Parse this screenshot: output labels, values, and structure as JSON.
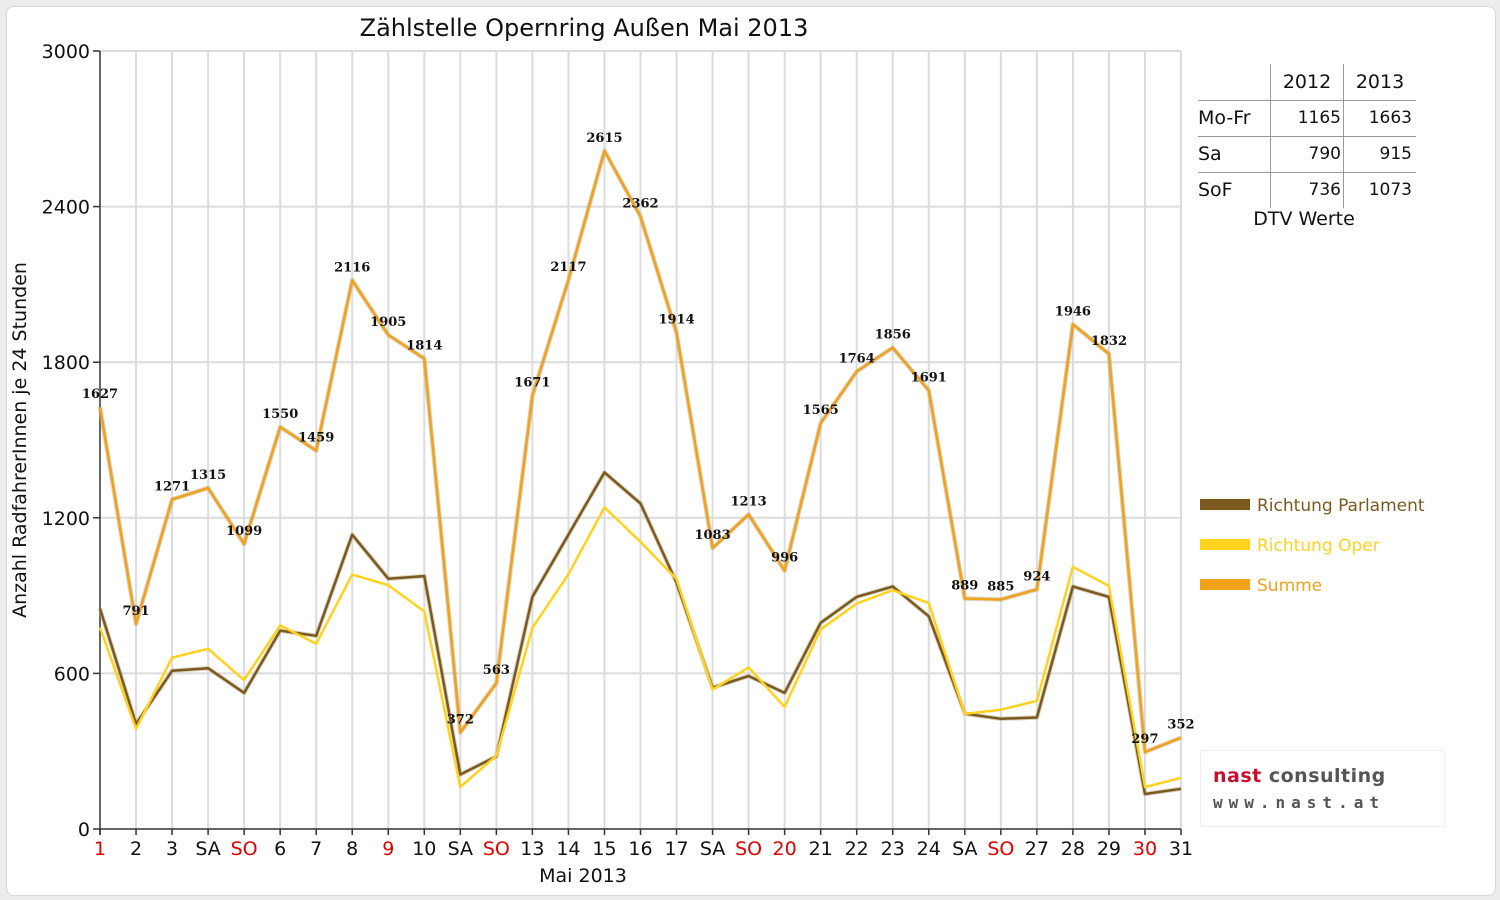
{
  "chart_data": {
    "type": "line",
    "title": "Zählstelle Opernring Außen Mai 2013",
    "xlabel": "Mai 2013",
    "ylabel": "Anzahl RadfahrerInnen je 24 Stunden",
    "ylim": [
      0,
      3000
    ],
    "yticks": [
      0,
      600,
      1200,
      1800,
      2400,
      3000
    ],
    "grid": true,
    "legend_position": "right",
    "categories": [
      "1",
      "2",
      "3",
      "SA",
      "SO",
      "6",
      "7",
      "8",
      "9",
      "10",
      "SA",
      "SO",
      "13",
      "14",
      "15",
      "16",
      "17",
      "SA",
      "SO",
      "20",
      "21",
      "22",
      "23",
      "24",
      "SA",
      "SO",
      "27",
      "28",
      "29",
      "30",
      "31"
    ],
    "holiday_indices": [
      0,
      4,
      8,
      11,
      18,
      19,
      25,
      29
    ],
    "series": [
      {
        "name": "Richtung Parlament",
        "color": "#7a5a1e",
        "values": [
          850,
          405,
          610,
          620,
          525,
          765,
          745,
          1135,
          965,
          975,
          210,
          280,
          895,
          1135,
          1375,
          1255,
          950,
          545,
          590,
          525,
          795,
          895,
          935,
          820,
          445,
          425,
          430,
          935,
          895,
          135,
          155
        ]
      },
      {
        "name": "Richtung Oper",
        "color": "#ffd21e",
        "values": [
          777,
          386,
          661,
          695,
          574,
          785,
          714,
          981,
          940,
          839,
          162,
          283,
          776,
          982,
          1240,
          1107,
          964,
          538,
          623,
          471,
          770,
          869,
          921,
          871,
          444,
          460,
          494,
          1011,
          937,
          162,
          197
        ]
      },
      {
        "name": "Summe",
        "color": "#f0a21a",
        "values": [
          1627,
          791,
          1271,
          1315,
          1099,
          1550,
          1459,
          2116,
          1905,
          1814,
          372,
          563,
          1671,
          2117,
          2615,
          2362,
          1914,
          1083,
          1213,
          996,
          1565,
          1764,
          1856,
          1691,
          889,
          885,
          924,
          1946,
          1832,
          297,
          352
        ]
      }
    ],
    "data_labels": [
      "1627",
      "791",
      "1271",
      "1315",
      "1099",
      "1550",
      "1459",
      "2116",
      "1905",
      "1814",
      "372",
      "563",
      "1671",
      "2117",
      "2615",
      "2362",
      "1914",
      "1083",
      "1213",
      "996",
      "1565",
      "1764",
      "1856",
      "1691",
      "889",
      "885",
      "924",
      "1946",
      "1832",
      "297",
      "352"
    ]
  },
  "dtv_table": {
    "columns": [
      "2012",
      "2013"
    ],
    "rows": [
      {
        "label": "Mo-Fr",
        "v2012": "1165",
        "v2013": "1663"
      },
      {
        "label": "Sa",
        "v2012": "790",
        "v2013": "915"
      },
      {
        "label": "SoF",
        "v2012": "736",
        "v2013": "1073"
      }
    ],
    "caption": "DTV Werte"
  },
  "logo": {
    "line1_part1": "nast",
    "line1_part2": " consulting",
    "line2": "www.nast.at"
  },
  "colors": {
    "holiday": "#e00000",
    "grid": "#dcdcdc",
    "axis": "#333333"
  }
}
